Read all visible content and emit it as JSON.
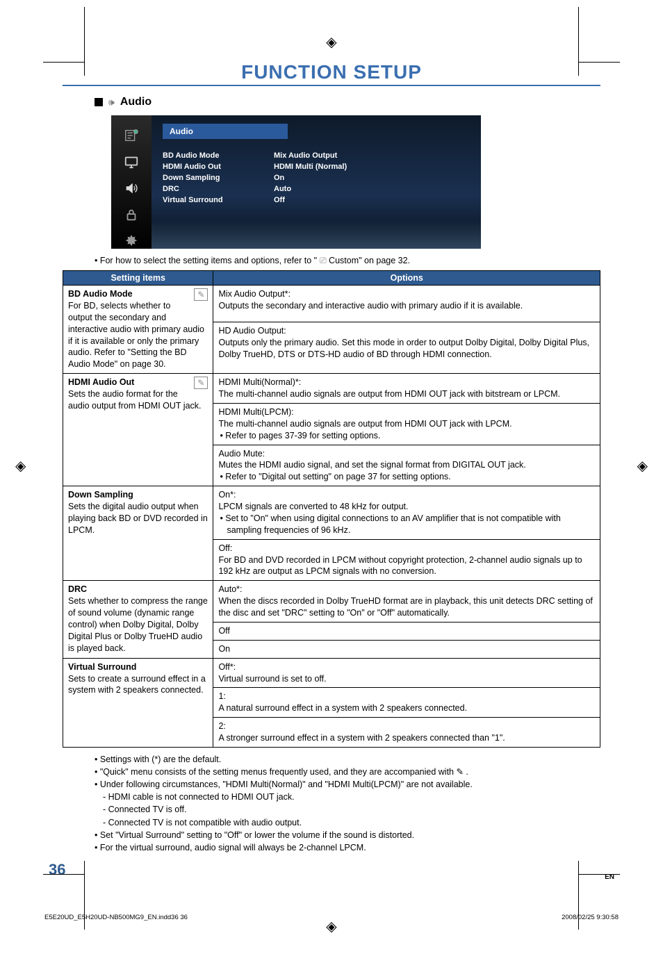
{
  "title": "FUNCTION SETUP",
  "section": {
    "label": "Audio"
  },
  "menu": {
    "tab": "Audio",
    "rows": [
      {
        "k": "BD Audio Mode",
        "v": "Mix Audio Output"
      },
      {
        "k": "HDMI Audio Out",
        "v": "HDMI Multi (Normal)"
      },
      {
        "k": "Down Sampling",
        "v": "On"
      },
      {
        "k": "DRC",
        "v": "Auto"
      },
      {
        "k": "Virtual Surround",
        "v": "Off"
      }
    ]
  },
  "preNote": {
    "prefix": "• For how to select the setting items and options, refer to \" ",
    "suffix": " Custom\" on page 32."
  },
  "headers": {
    "left": "Setting items",
    "right": "Options"
  },
  "rows": [
    {
      "left": {
        "title": "BD Audio Mode",
        "quick": true,
        "desc": "For BD, selects whether to output the secondary and interactive audio with primary audio if it is available or only the primary audio. Refer to \"Setting the BD Audio Mode\" on page 30."
      },
      "opts": [
        "Mix Audio Output*:\nOutputs the secondary and interactive audio with primary audio if it is available.",
        "HD Audio Output:\nOutputs only the primary audio. Set this mode in order to output Dolby Digital, Dolby Digital Plus, Dolby TrueHD, DTS or DTS-HD audio of BD through HDMI connection."
      ]
    },
    {
      "left": {
        "title": "HDMI Audio Out",
        "quick": true,
        "desc": "Sets the audio format for the audio output from HDMI OUT jack."
      },
      "opts": [
        "HDMI Multi(Normal)*:\nThe multi-channel audio signals are output from HDMI OUT jack with bitstream or LPCM.",
        "HDMI Multi(LPCM):\nThe multi-channel audio signals are output from HDMI OUT jack with LPCM.\n• Refer to pages 37-39 for setting options.",
        "Audio Mute:\nMutes the HDMI audio signal, and set the signal format from DIGITAL OUT jack.\n• Refer to \"Digital out setting\" on page 37 for setting options."
      ]
    },
    {
      "left": {
        "title": "Down Sampling",
        "quick": false,
        "desc": "Sets the digital audio output when playing back BD or DVD recorded in LPCM."
      },
      "opts": [
        "On*:\nLPCM signals are converted to 48 kHz for output.\n• Set to \"On\" when using digital connections to an AV amplifier that is not compatible with sampling frequencies of 96 kHz.",
        "Off:\nFor BD and DVD recorded in LPCM without copyright protection, 2-channel audio signals up to 192 kHz are output as LPCM signals with no conversion."
      ]
    },
    {
      "left": {
        "title": "DRC",
        "quick": false,
        "desc": "Sets whether to compress the range of sound volume (dynamic range control) when Dolby Digital, Dolby Digital Plus or Dolby TrueHD audio is played back."
      },
      "opts": [
        "Auto*:\nWhen the discs recorded in Dolby TrueHD format are in playback, this unit detects DRC setting of the disc and set \"DRC\" setting to \"On\" or \"Off\" automatically.",
        "Off",
        "On"
      ]
    },
    {
      "left": {
        "title": "Virtual Surround",
        "quick": false,
        "desc": "Sets to create a surround effect in a system with 2 speakers connected."
      },
      "opts": [
        "Off*:\nVirtual surround is set to off.",
        "1:\nA natural surround effect in a system with 2 speakers connected.",
        "2:\nA stronger surround effect in a system with 2 speakers connected than \"1\"."
      ]
    }
  ],
  "notes": [
    "Settings with (*) are the default.",
    "\"Quick\" menu consists of the setting menus frequently used, and they are accompanied with  ✎ .",
    "Under following circumstances, \"HDMI Multi(Normal)\" and \"HDMI Multi(LPCM)\" are not available.",
    "- HDMI cable is not connected to HDMI OUT jack.",
    "- Connected TV is off.",
    "- Connected TV is not compatible with audio output.",
    "Set \"Virtual Surround\" setting to \"Off\" or lower the volume if the sound is distorted.",
    "For the virtual surround, audio signal will always be 2-channel LPCM."
  ],
  "noteIsSub": [
    false,
    false,
    false,
    true,
    true,
    true,
    false,
    false
  ],
  "pageNum": "36",
  "lang": "EN",
  "footer": {
    "left": "E5E20UD_E5H20UD-NB500MG9_EN.indd36   36",
    "right": "2008/02/25   9:30:58"
  },
  "colors": {
    "accent": "#2e5a8f",
    "titleBlue": "#3b6fb0"
  }
}
